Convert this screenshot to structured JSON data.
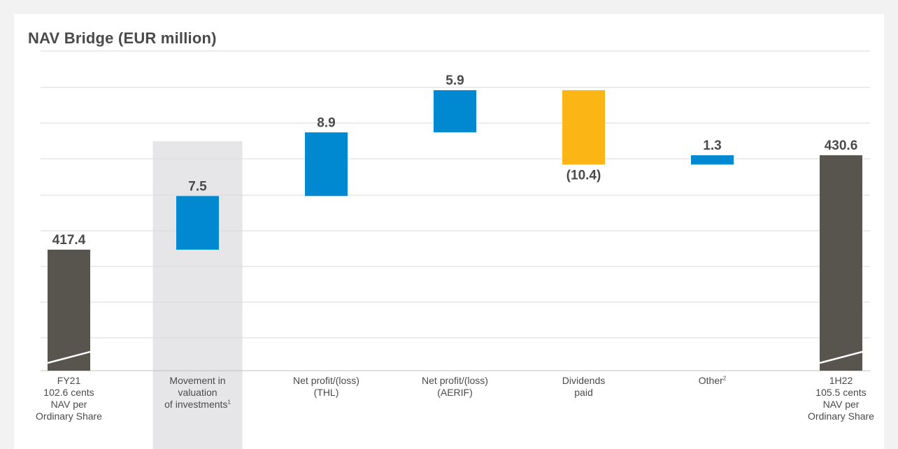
{
  "chart_data": {
    "type": "bar",
    "subtype": "waterfall",
    "title": "NAV Bridge (EUR million)",
    "xlabel": "",
    "ylabel": "",
    "grid": true,
    "categories": [
      {
        "label": "FY21\n102.6 cents\nNAV per\nOrdinary Share",
        "sup": ""
      },
      {
        "label": "Movement in\nvaluation\nof investments",
        "sup": "1"
      },
      {
        "label": "Net profit/(loss)\n(THL)",
        "sup": ""
      },
      {
        "label": "Net profit/(loss)\n(AERIF)",
        "sup": ""
      },
      {
        "label": "Dividends\npaid",
        "sup": ""
      },
      {
        "label": "Other",
        "sup": "2"
      },
      {
        "label": "1H22\n105.5 cents\nNAV per\nOrdinary Share",
        "sup": ""
      }
    ],
    "values": [
      417.4,
      7.5,
      8.9,
      5.9,
      -10.4,
      1.3,
      430.6
    ],
    "value_labels": [
      "417.4",
      "7.5",
      "8.9",
      "5.9",
      "(10.4)",
      "1.3",
      "430.6"
    ],
    "bar_kinds": [
      "total",
      "delta",
      "delta",
      "delta",
      "delta",
      "delta",
      "total"
    ],
    "highlighted_category": 1,
    "axis_break": true,
    "colors": {
      "total": "#58554f",
      "increase": "#0088d1",
      "decrease": "#fbb615",
      "highlight": "#e6e6e8",
      "grid": "#d9d9d9",
      "text": "#4a4a4a"
    }
  }
}
